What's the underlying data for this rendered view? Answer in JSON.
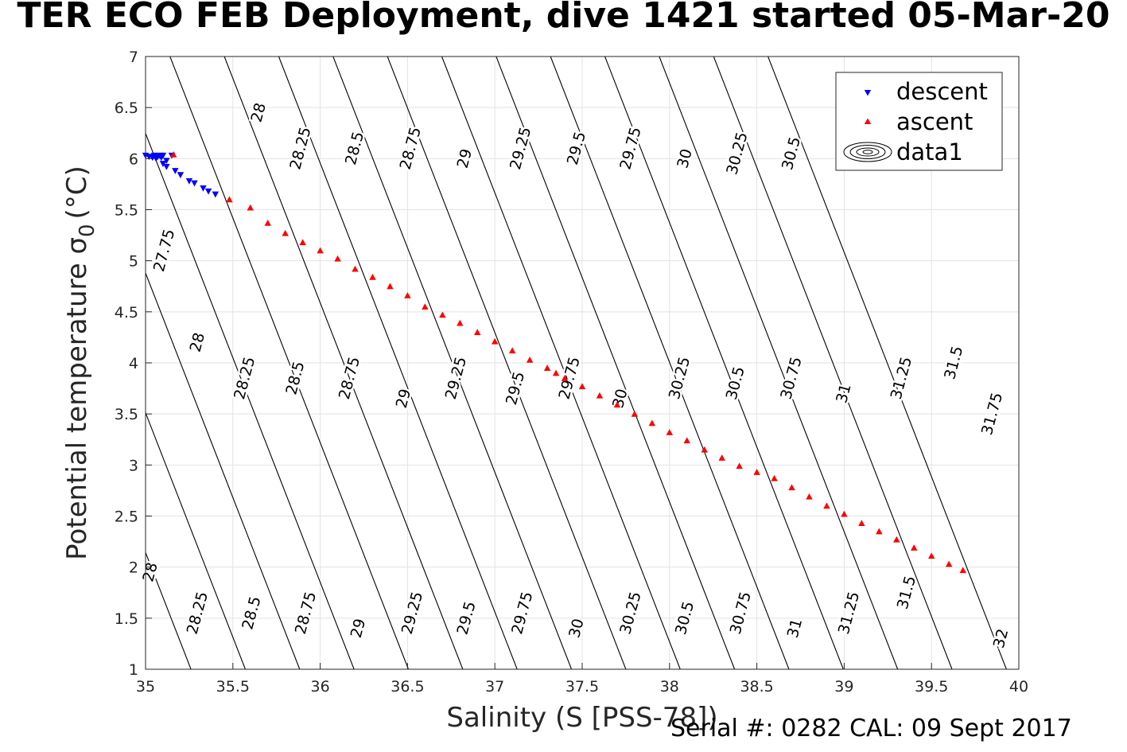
{
  "chart_data": {
    "type": "scatter",
    "title": "TER ECO FEB Deployment, dive 1421 started 05-Mar-20",
    "xlabel": "Salinity (S [PSS-78])",
    "ylabel_main": "Potential temperature σ",
    "ylabel_sub": "0",
    "ylabel_unit": "(°C)",
    "xlim": [
      35,
      40
    ],
    "ylim": [
      1,
      7
    ],
    "x_ticks": [
      "35",
      "35.5",
      "36",
      "36.5",
      "37",
      "37.5",
      "38",
      "38.5",
      "39",
      "39.5",
      "40"
    ],
    "y_ticks": [
      "1",
      "1.5",
      "2",
      "2.5",
      "3",
      "3.5",
      "4",
      "4.5",
      "5",
      "5.5",
      "6",
      "6.5",
      "7"
    ],
    "grid": true,
    "legend_position": "top-right",
    "legend": [
      {
        "label": "descent",
        "marker": "triangle-down",
        "color": "#0000ff"
      },
      {
        "label": "ascent",
        "marker": "triangle-up",
        "color": "#ff0000"
      },
      {
        "label": "data1",
        "marker": "contour",
        "color": "#000000"
      }
    ],
    "series": [
      {
        "name": "descent",
        "color": "#0000ff",
        "points": [
          [
            35.0,
            6.03
          ],
          [
            35.02,
            6.02
          ],
          [
            35.04,
            6.01
          ],
          [
            35.05,
            6.03
          ],
          [
            35.06,
            6.0
          ],
          [
            35.07,
            6.02
          ],
          [
            35.08,
            6.03
          ],
          [
            35.09,
            6.01
          ],
          [
            35.1,
            6.03
          ],
          [
            35.12,
            5.98
          ],
          [
            35.15,
            6.03
          ],
          [
            35.1,
            5.95
          ],
          [
            35.12,
            5.92
          ],
          [
            35.17,
            5.88
          ],
          [
            35.2,
            5.84
          ],
          [
            35.25,
            5.78
          ],
          [
            35.28,
            5.76
          ],
          [
            35.33,
            5.71
          ],
          [
            35.36,
            5.68
          ],
          [
            35.4,
            5.65
          ]
        ]
      },
      {
        "name": "ascent",
        "color": "#ff0000",
        "points": [
          [
            35.16,
            6.04
          ],
          [
            35.48,
            5.6
          ],
          [
            35.6,
            5.52
          ],
          [
            35.7,
            5.37
          ],
          [
            35.8,
            5.27
          ],
          [
            35.9,
            5.18
          ],
          [
            36.0,
            5.1
          ],
          [
            36.1,
            5.02
          ],
          [
            36.2,
            4.92
          ],
          [
            36.3,
            4.84
          ],
          [
            36.4,
            4.75
          ],
          [
            36.5,
            4.66
          ],
          [
            36.6,
            4.55
          ],
          [
            36.7,
            4.47
          ],
          [
            36.8,
            4.39
          ],
          [
            36.9,
            4.3
          ],
          [
            37.0,
            4.21
          ],
          [
            37.1,
            4.12
          ],
          [
            37.2,
            4.03
          ],
          [
            37.3,
            3.95
          ],
          [
            37.35,
            3.9
          ],
          [
            37.4,
            3.85
          ],
          [
            37.5,
            3.77
          ],
          [
            37.6,
            3.68
          ],
          [
            37.7,
            3.59
          ],
          [
            37.8,
            3.5
          ],
          [
            37.9,
            3.41
          ],
          [
            38.0,
            3.32
          ],
          [
            38.1,
            3.24
          ],
          [
            38.2,
            3.15
          ],
          [
            38.3,
            3.07
          ],
          [
            38.4,
            2.99
          ],
          [
            38.5,
            2.93
          ],
          [
            38.6,
            2.87
          ],
          [
            38.7,
            2.78
          ],
          [
            38.8,
            2.69
          ],
          [
            38.9,
            2.6
          ],
          [
            39.0,
            2.52
          ],
          [
            39.1,
            2.43
          ],
          [
            39.2,
            2.35
          ],
          [
            39.3,
            2.27
          ],
          [
            39.4,
            2.19
          ],
          [
            39.5,
            2.11
          ],
          [
            39.6,
            2.03
          ],
          [
            39.68,
            1.97
          ]
        ]
      }
    ],
    "contours": {
      "levels": [
        "27.75",
        "28",
        "28.25",
        "28.5",
        "28.75",
        "29",
        "29.25",
        "29.5",
        "29.75",
        "30",
        "30.25",
        "30.5",
        "30.75",
        "31",
        "31.25",
        "31.5",
        "31.75",
        "32"
      ],
      "labels": [
        {
          "text": "28",
          "x": 35.65,
          "y": 6.45
        },
        {
          "text": "28.25",
          "x": 35.89,
          "y": 6.1
        },
        {
          "text": "28.5",
          "x": 36.2,
          "y": 6.1
        },
        {
          "text": "28.75",
          "x": 36.52,
          "y": 6.1
        },
        {
          "text": "29",
          "x": 36.83,
          "y": 6.0
        },
        {
          "text": "29.25",
          "x": 37.15,
          "y": 6.1
        },
        {
          "text": "29.5",
          "x": 37.47,
          "y": 6.1
        },
        {
          "text": "29.75",
          "x": 37.78,
          "y": 6.1
        },
        {
          "text": "30",
          "x": 38.09,
          "y": 6.0
        },
        {
          "text": "30.25",
          "x": 38.39,
          "y": 6.05
        },
        {
          "text": "30.5",
          "x": 38.7,
          "y": 6.05
        },
        {
          "text": "27.75",
          "x": 35.11,
          "y": 5.1
        },
        {
          "text": "28",
          "x": 35.3,
          "y": 4.2
        },
        {
          "text": "28.25",
          "x": 35.57,
          "y": 3.85
        },
        {
          "text": "28.5",
          "x": 35.86,
          "y": 3.85
        },
        {
          "text": "28.75",
          "x": 36.17,
          "y": 3.85
        },
        {
          "text": "29",
          "x": 36.48,
          "y": 3.65
        },
        {
          "text": "29.25",
          "x": 36.78,
          "y": 3.85
        },
        {
          "text": "29.5",
          "x": 37.12,
          "y": 3.75
        },
        {
          "text": "29.75",
          "x": 37.43,
          "y": 3.85
        },
        {
          "text": "30",
          "x": 37.72,
          "y": 3.65
        },
        {
          "text": "30.25",
          "x": 38.06,
          "y": 3.85
        },
        {
          "text": "30.5",
          "x": 38.38,
          "y": 3.8
        },
        {
          "text": "30.75",
          "x": 38.7,
          "y": 3.85
        },
        {
          "text": "31",
          "x": 39.0,
          "y": 3.7
        },
        {
          "text": "31.25",
          "x": 39.33,
          "y": 3.85
        },
        {
          "text": "31.5",
          "x": 39.63,
          "y": 4.0
        },
        {
          "text": "31.75",
          "x": 39.85,
          "y": 3.5
        },
        {
          "text": "28",
          "x": 35.03,
          "y": 1.95
        },
        {
          "text": "28.25",
          "x": 35.3,
          "y": 1.55
        },
        {
          "text": "28.5",
          "x": 35.61,
          "y": 1.55
        },
        {
          "text": "28.75",
          "x": 35.92,
          "y": 1.55
        },
        {
          "text": "29",
          "x": 36.22,
          "y": 1.4
        },
        {
          "text": "29.25",
          "x": 36.53,
          "y": 1.55
        },
        {
          "text": "29.5",
          "x": 36.84,
          "y": 1.5
        },
        {
          "text": "29.75",
          "x": 37.16,
          "y": 1.55
        },
        {
          "text": "30",
          "x": 37.47,
          "y": 1.4
        },
        {
          "text": "30.25",
          "x": 37.78,
          "y": 1.55
        },
        {
          "text": "30.5",
          "x": 38.09,
          "y": 1.5
        },
        {
          "text": "30.75",
          "x": 38.41,
          "y": 1.55
        },
        {
          "text": "31",
          "x": 38.72,
          "y": 1.4
        },
        {
          "text": "31.25",
          "x": 39.03,
          "y": 1.55
        },
        {
          "text": "31.5",
          "x": 39.36,
          "y": 1.75
        },
        {
          "text": "32",
          "x": 39.9,
          "y": 1.3
        }
      ]
    },
    "footer": "Serial #: 0282  CAL: 09 Sept 2017"
  }
}
